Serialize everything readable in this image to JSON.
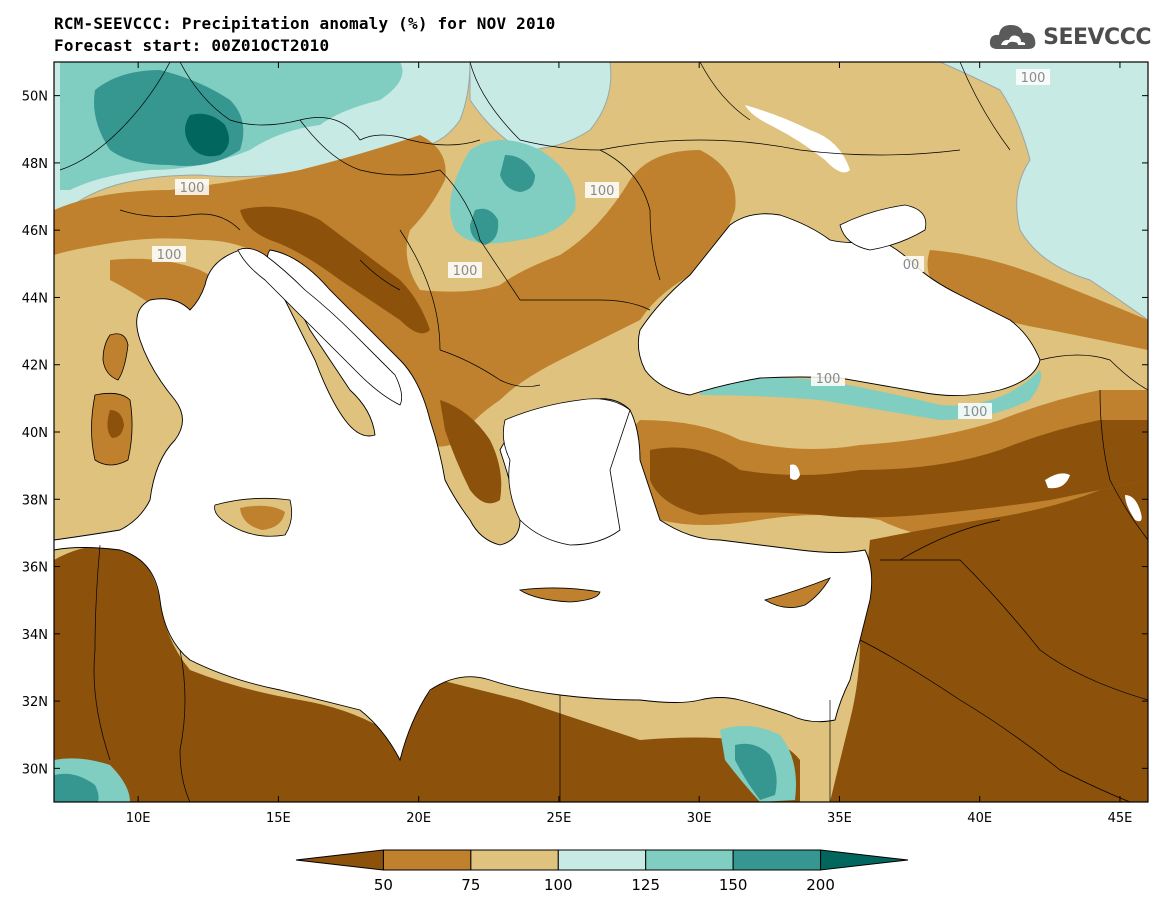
{
  "header": {
    "title_line1": "RCM-SEEVCCC: Precipitation anomaly (%) for NOV 2010",
    "title_line2": "Forecast start: 00Z01OCT2010",
    "logo_text": "SEEVCCC",
    "logo_icon": "cloud-icon"
  },
  "map": {
    "projection": "lat-lon",
    "lon_range": [
      7,
      46
    ],
    "lat_range": [
      29,
      51
    ],
    "lat_labels": [
      "50N",
      "48N",
      "46N",
      "44N",
      "42N",
      "40N",
      "38N",
      "36N",
      "34N",
      "32N",
      "30N"
    ],
    "lon_labels": [
      "10E",
      "15E",
      "20E",
      "25E",
      "30E",
      "35E",
      "40E",
      "45E"
    ],
    "contour_labels": [
      "100",
      "100",
      "100",
      "100",
      "100",
      "100",
      "100",
      "00"
    ],
    "sea_color": "#ffffff"
  },
  "colorbar": {
    "labels": [
      "50",
      "75",
      "100",
      "125",
      "150",
      "200"
    ],
    "colors": [
      "#8c510a",
      "#bf812d",
      "#dfc27d",
      "#c7eae5",
      "#80cdc1",
      "#35978f",
      "#01665e"
    ]
  }
}
